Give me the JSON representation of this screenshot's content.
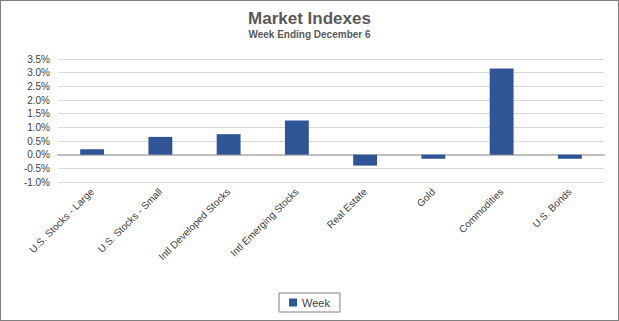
{
  "chart_data": {
    "type": "bar",
    "title": "Market Indexes",
    "subtitle": "Week Ending December 6",
    "categories": [
      "U.S. Stocks - Large",
      "U.S. Stocks - Small",
      "Intl Developed Stocks",
      "Intl Emerging Stocks",
      "Real Estate",
      "Gold",
      "Commodities",
      "U.S. Bonds"
    ],
    "series": [
      {
        "name": "Week",
        "color": "#2f5597",
        "values": [
          0.2,
          0.65,
          0.75,
          1.25,
          -0.4,
          -0.15,
          3.15,
          -0.15
        ]
      }
    ],
    "ylim": [
      -1.0,
      3.5
    ],
    "yticks": [
      {
        "value": -1.0,
        "label": "-1.0%"
      },
      {
        "value": -0.5,
        "label": "-0.5%"
      },
      {
        "value": 0.0,
        "label": "0.0%"
      },
      {
        "value": 0.5,
        "label": "0.5%"
      },
      {
        "value": 1.0,
        "label": "1.0%"
      },
      {
        "value": 1.5,
        "label": "1.5%"
      },
      {
        "value": 2.0,
        "label": "2.0%"
      },
      {
        "value": 2.5,
        "label": "2.5%"
      },
      {
        "value": 3.0,
        "label": "3.0%"
      },
      {
        "value": 3.5,
        "label": "3.5%"
      }
    ],
    "grid": true,
    "legend": "bottom"
  }
}
